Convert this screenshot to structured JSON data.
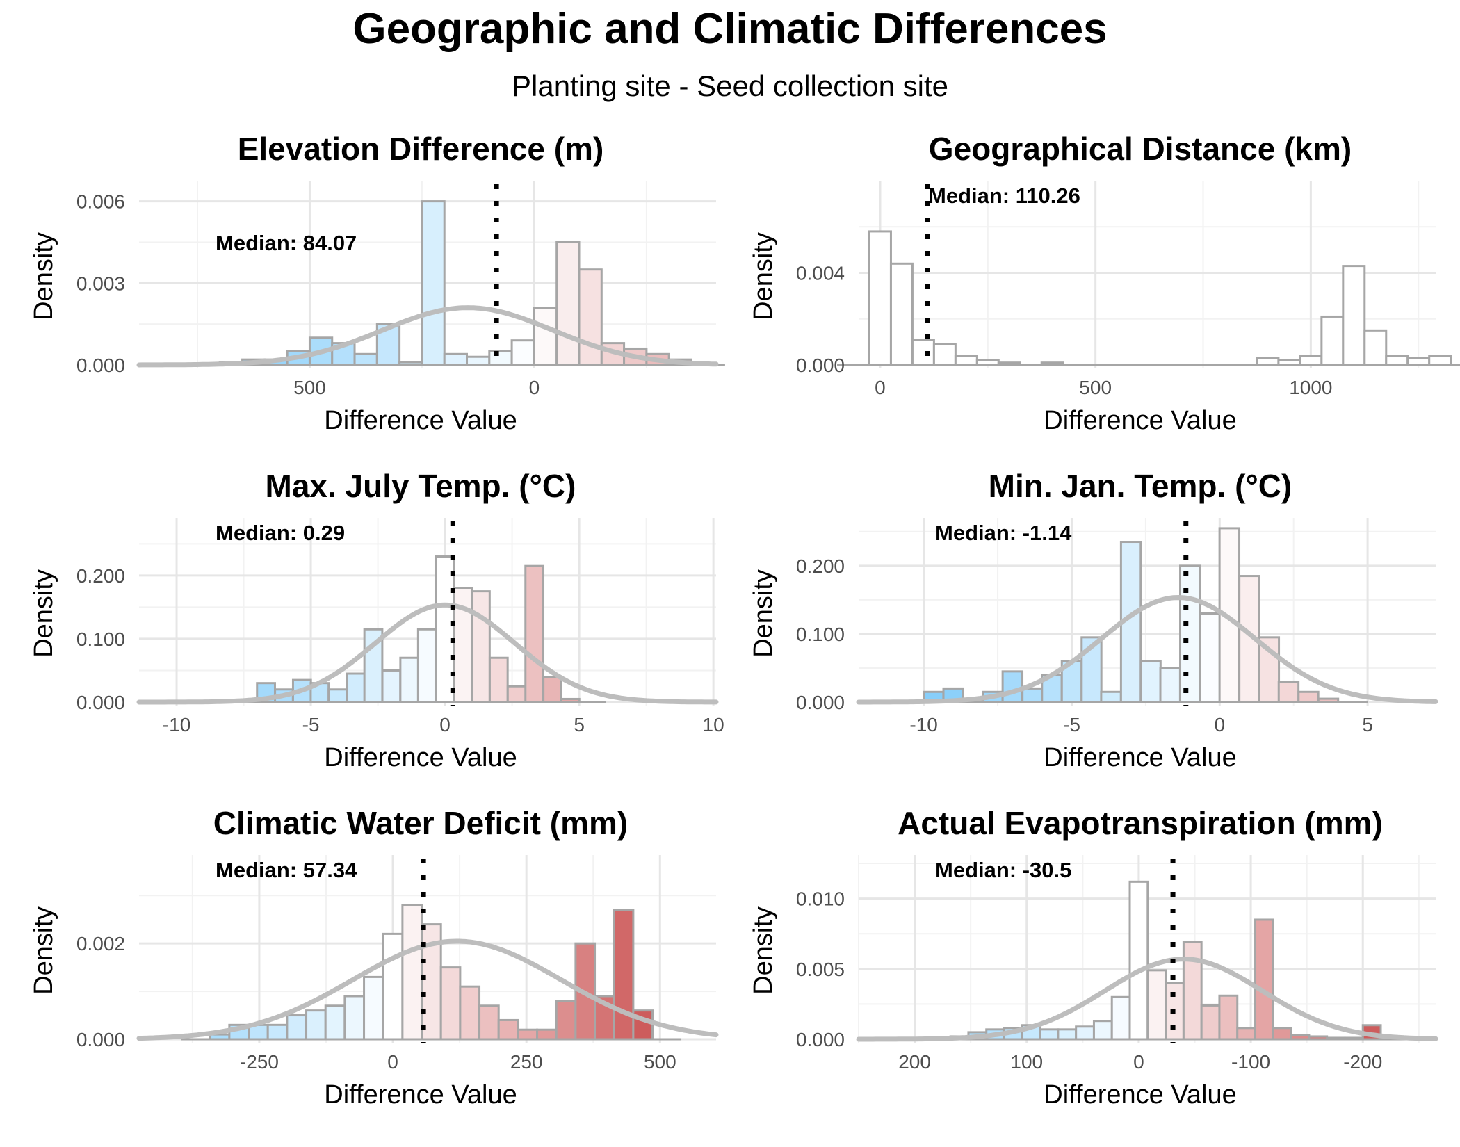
{
  "title": "Geographic and Climatic Differences",
  "subtitle": "Planting site - Seed collection site",
  "colors": {
    "cool": "#87cefa",
    "neutral": "#ffffff",
    "warm": "#cd5c5c",
    "bar_outline": "#a6a6a6",
    "density_curve": "#bdbdbd",
    "median_line": "#000000"
  },
  "chart_data": [
    {
      "type": "bar",
      "title": "Elevation Difference (m)",
      "xlabel": "Difference Value",
      "ylabel": "Density",
      "x_reversed": true,
      "fill": "diverging",
      "grid": true,
      "xlim": [
        880,
        -405
      ],
      "ylim": [
        0,
        0.0065
      ],
      "x_ticks": [
        500,
        0
      ],
      "x_tick_labels": [
        "500",
        "0"
      ],
      "y_ticks": [
        0,
        0.003,
        0.006
      ],
      "y_tick_labels": [
        "0.000",
        "0.003",
        "0.006"
      ],
      "bin_width": 50,
      "bins": [
        [
          675,
          0.0001
        ],
        [
          625,
          0.0002
        ],
        [
          575,
          0.0002
        ],
        [
          525,
          0.0005
        ],
        [
          475,
          0.001
        ],
        [
          425,
          0.0008
        ],
        [
          375,
          0.0004
        ],
        [
          325,
          0.0015
        ],
        [
          275,
          0.0001
        ],
        [
          225,
          0.006
        ],
        [
          175,
          0.0004
        ],
        [
          125,
          0.0003
        ],
        [
          75,
          0.0005
        ],
        [
          25,
          0.0009
        ],
        [
          -25,
          0.0021
        ],
        [
          -75,
          0.0045
        ],
        [
          -125,
          0.0035
        ],
        [
          -175,
          0.0008
        ],
        [
          -225,
          0.0006
        ],
        [
          -275,
          0.0004
        ],
        [
          -325,
          0.0002
        ]
      ],
      "density_curve": {
        "mean": 148,
        "sd": 190
      },
      "median": 84.07,
      "median_label": "Median: 84.07"
    },
    {
      "type": "bar",
      "title": "Geographical Distance (km)",
      "xlabel": "Difference Value",
      "ylabel": "Density",
      "x_reversed": false,
      "fill": "none",
      "grid": true,
      "xlim": [
        -50,
        1290
      ],
      "ylim": [
        0,
        0.0077
      ],
      "x_ticks": [
        0,
        500,
        1000
      ],
      "x_tick_labels": [
        "0",
        "500",
        "1000"
      ],
      "y_ticks": [
        0,
        0.004
      ],
      "y_tick_labels": [
        "0.000",
        "0.004"
      ],
      "bin_width": 50,
      "bins": [
        [
          0,
          0.0058
        ],
        [
          50,
          0.0044
        ],
        [
          100,
          0.0011
        ],
        [
          150,
          0.0009
        ],
        [
          200,
          0.0004
        ],
        [
          250,
          0.0002
        ],
        [
          300,
          0.0001
        ],
        [
          350,
          0.0
        ],
        [
          400,
          0.0001
        ],
        [
          450,
          0
        ],
        [
          500,
          0
        ],
        [
          550,
          0
        ],
        [
          600,
          0
        ],
        [
          650,
          0
        ],
        [
          700,
          0
        ],
        [
          750,
          0
        ],
        [
          800,
          0
        ],
        [
          850,
          0
        ],
        [
          900,
          0.0003
        ],
        [
          950,
          0.0002
        ],
        [
          1000,
          0.0004
        ],
        [
          1050,
          0.0021
        ],
        [
          1100,
          0.0043
        ],
        [
          1150,
          0.0015
        ],
        [
          1200,
          0.0004
        ],
        [
          1250,
          0.0003
        ],
        [
          1300,
          0.0004
        ]
      ],
      "median": 110.26,
      "median_label": "Median: 110.26"
    },
    {
      "type": "bar",
      "title": "Max. July Temp. (°C)",
      "xlabel": "Difference Value",
      "ylabel": "Density",
      "x_reversed": false,
      "fill": "diverging",
      "grid": true,
      "xlim": [
        -11.4,
        10.1
      ],
      "ylim": [
        0,
        0.28
      ],
      "x_ticks": [
        -10,
        -5,
        0,
        5,
        10
      ],
      "x_tick_labels": [
        "-10",
        "-5",
        "0",
        "5",
        "10"
      ],
      "y_ticks": [
        0,
        0.1,
        0.2
      ],
      "y_tick_labels": [
        "0.000",
        "0.100",
        "0.200"
      ],
      "bin_width": 0.667,
      "bins": [
        [
          -6.67,
          0.03
        ],
        [
          -6.0,
          0.02
        ],
        [
          -5.33,
          0.035
        ],
        [
          -4.67,
          0.03
        ],
        [
          -4.0,
          0.02
        ],
        [
          -3.33,
          0.045
        ],
        [
          -2.67,
          0.115
        ],
        [
          -2.0,
          0.05
        ],
        [
          -1.33,
          0.07
        ],
        [
          -0.67,
          0.115
        ],
        [
          0.0,
          0.23
        ],
        [
          0.67,
          0.18
        ],
        [
          1.33,
          0.175
        ],
        [
          2.0,
          0.07
        ],
        [
          2.67,
          0.025
        ],
        [
          3.33,
          0.215
        ],
        [
          4.0,
          0.04
        ],
        [
          4.67,
          0.005
        ]
      ],
      "density_curve": {
        "mean": 0.0,
        "sd": 2.6
      },
      "median": 0.29,
      "median_label": "Median: 0.29"
    },
    {
      "type": "bar",
      "title": "Min. Jan. Temp. (°C)",
      "xlabel": "Difference Value",
      "ylabel": "Density",
      "x_reversed": false,
      "fill": "diverging",
      "grid": true,
      "xlim": [
        -12.2,
        7.3
      ],
      "ylim": [
        0,
        0.26
      ],
      "x_ticks": [
        -10,
        -5,
        0,
        5
      ],
      "x_tick_labels": [
        "-10",
        "-5",
        "0",
        "5"
      ],
      "y_ticks": [
        0,
        0.1,
        0.2
      ],
      "y_tick_labels": [
        "0.000",
        "0.100",
        "0.200"
      ],
      "bin_width": 0.667,
      "bins": [
        [
          -9.67,
          0.015
        ],
        [
          -9.0,
          0.02
        ],
        [
          -8.33,
          0.003
        ],
        [
          -7.67,
          0.015
        ],
        [
          -7.0,
          0.045
        ],
        [
          -6.33,
          0.02
        ],
        [
          -5.67,
          0.04
        ],
        [
          -5.0,
          0.06
        ],
        [
          -4.33,
          0.095
        ],
        [
          -3.67,
          0.015
        ],
        [
          -3.0,
          0.235
        ],
        [
          -2.33,
          0.06
        ],
        [
          -1.67,
          0.05
        ],
        [
          -1.0,
          0.2
        ],
        [
          -0.33,
          0.13
        ],
        [
          0.33,
          0.255
        ],
        [
          1.0,
          0.185
        ],
        [
          1.67,
          0.095
        ],
        [
          2.33,
          0.03
        ],
        [
          3.0,
          0.015
        ],
        [
          3.67,
          0.005
        ]
      ],
      "density_curve": {
        "mean": -1.4,
        "sd": 2.6
      },
      "median": -1.14,
      "median_label": "Median: -1.14"
    },
    {
      "type": "bar",
      "title": "Climatic Water Deficit (mm)",
      "xlabel": "Difference Value",
      "ylabel": "Density",
      "x_reversed": false,
      "fill": "diverging",
      "grid": true,
      "xlim": [
        -475,
        605
      ],
      "ylim": [
        0,
        0.0037
      ],
      "x_ticks": [
        -250,
        0,
        250,
        500
      ],
      "x_tick_labels": [
        "-250",
        "0",
        "250",
        "500"
      ],
      "y_ticks": [
        0,
        0.002
      ],
      "y_tick_labels": [
        "0.000",
        "0.002"
      ],
      "bin_width": 36,
      "bins": [
        [
          -324,
          0.0001
        ],
        [
          -288,
          0.0003
        ],
        [
          -252,
          0.0003
        ],
        [
          -216,
          0.0003
        ],
        [
          -180,
          0.0005
        ],
        [
          -144,
          0.0006
        ],
        [
          -108,
          0.0007
        ],
        [
          -72,
          0.0009
        ],
        [
          -36,
          0.0013
        ],
        [
          0,
          0.0022
        ],
        [
          36,
          0.0028
        ],
        [
          72,
          0.0024
        ],
        [
          108,
          0.0015
        ],
        [
          144,
          0.0011
        ],
        [
          180,
          0.0007
        ],
        [
          216,
          0.0004
        ],
        [
          252,
          0.0002
        ],
        [
          288,
          0.0002
        ],
        [
          324,
          0.0008
        ],
        [
          360,
          0.002
        ],
        [
          396,
          0.0009
        ],
        [
          432,
          0.0027
        ],
        [
          468,
          0.0006
        ]
      ],
      "density_curve": {
        "mean": 120,
        "sd": 195
      },
      "median": 57.34,
      "median_label": "Median: 57.34"
    },
    {
      "type": "bar",
      "title": "Actual Evapotranspiration (mm)",
      "xlabel": "Difference Value",
      "ylabel": "Density",
      "x_reversed": true,
      "fill": "diverging",
      "grid": true,
      "xlim": [
        250,
        -265
      ],
      "ylim": [
        0,
        0.0126
      ],
      "x_ticks": [
        200,
        100,
        0,
        -100,
        -200
      ],
      "x_tick_labels": [
        "200",
        "100",
        "0",
        "-100",
        "-200"
      ],
      "y_ticks": [
        0,
        0.005,
        0.01
      ],
      "y_tick_labels": [
        "0.000",
        "0.005",
        "0.010"
      ],
      "bin_width": 16,
      "bins": [
        [
          160,
          0.0002
        ],
        [
          144,
          0.0005
        ],
        [
          128,
          0.0007
        ],
        [
          112,
          0.0008
        ],
        [
          96,
          0.001
        ],
        [
          80,
          0.0007
        ],
        [
          64,
          0.0007
        ],
        [
          48,
          0.0009
        ],
        [
          32,
          0.0013
        ],
        [
          16,
          0.003
        ],
        [
          0,
          0.0112
        ],
        [
          -16,
          0.0049
        ],
        [
          -32,
          0.004
        ],
        [
          -48,
          0.0069
        ],
        [
          -64,
          0.0024
        ],
        [
          -80,
          0.0031
        ],
        [
          -96,
          0.0008
        ],
        [
          -112,
          0.0085
        ],
        [
          -128,
          0.0008
        ],
        [
          -144,
          0.0003
        ],
        [
          -160,
          0.0002
        ],
        [
          -176,
          0.0001
        ],
        [
          -192,
          0.0001
        ],
        [
          -208,
          0.001
        ]
      ],
      "density_curve": {
        "mean": -40,
        "sd": 70
      },
      "median": -30.5,
      "median_label": "Median: -30.5"
    }
  ]
}
